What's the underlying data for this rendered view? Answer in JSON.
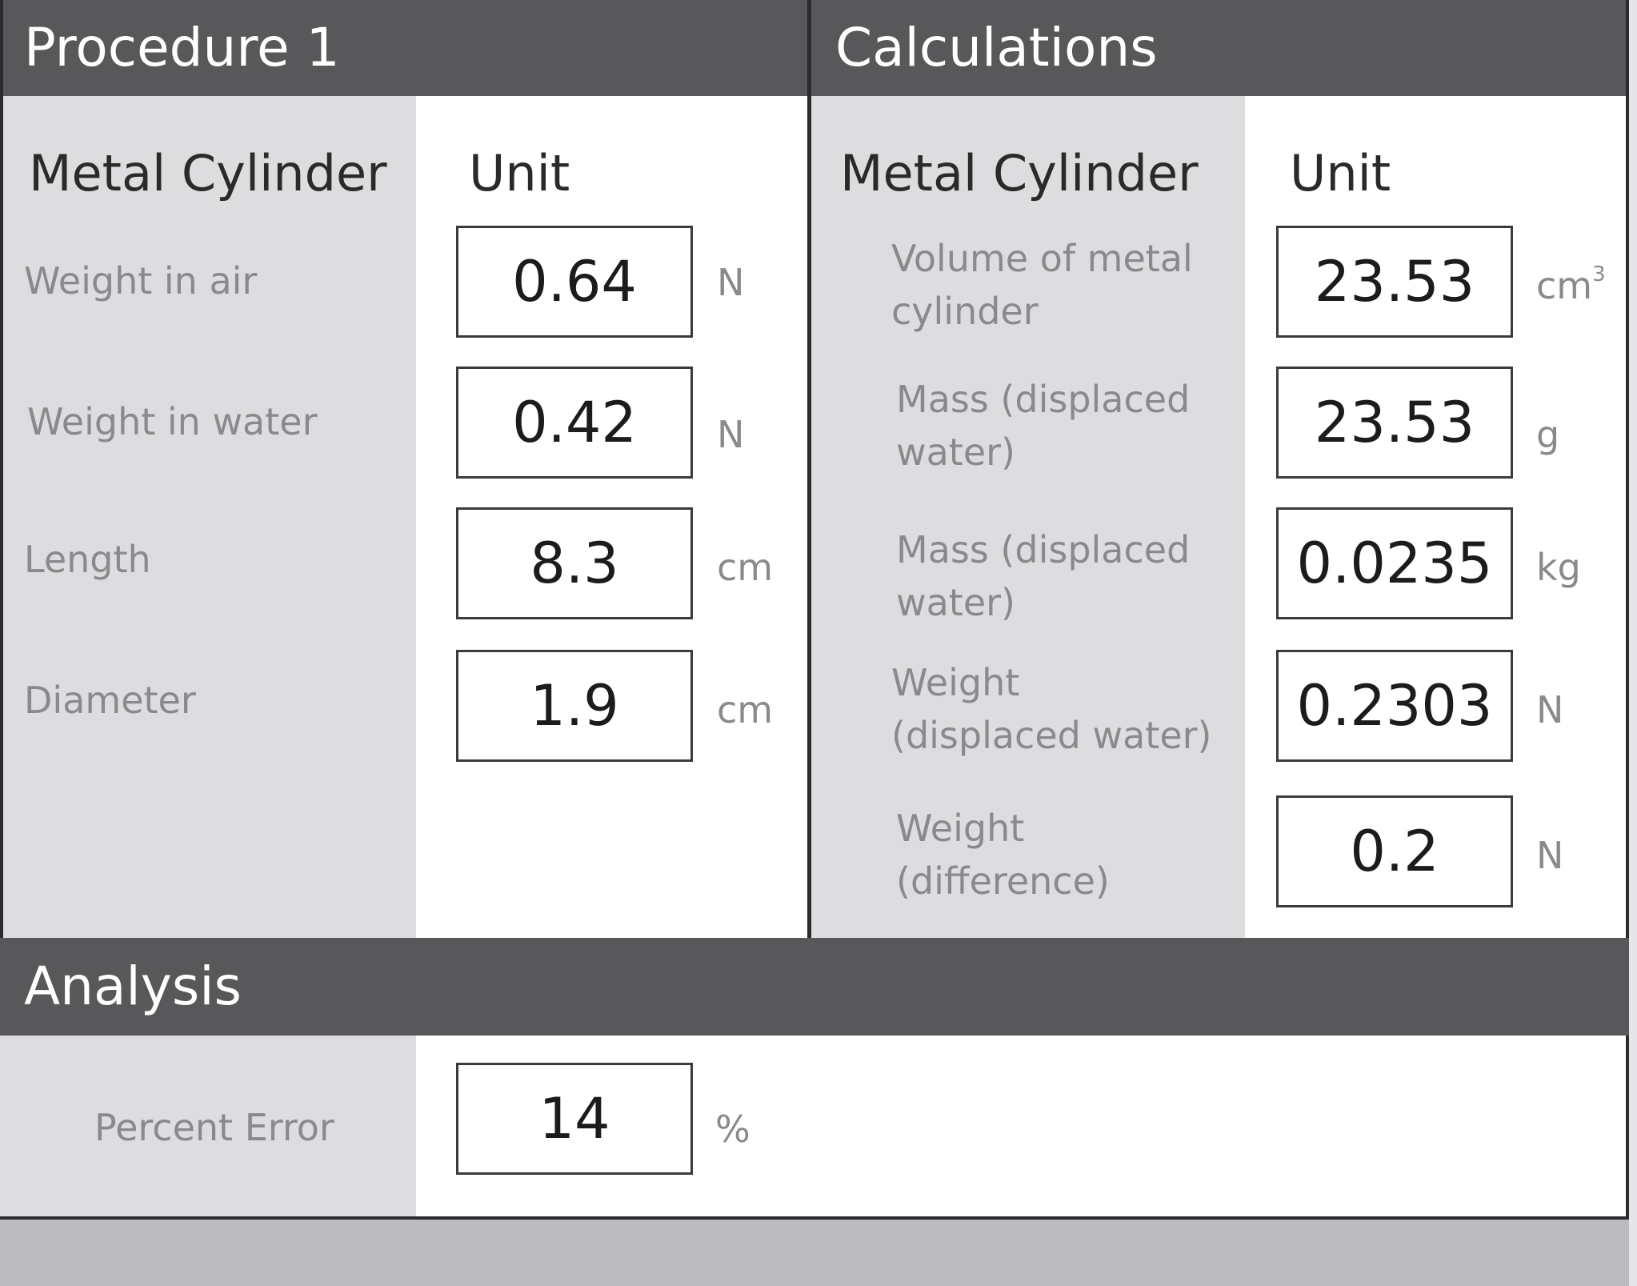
{
  "procedure": {
    "title": "Procedure 1",
    "column_header": "Metal Cylinder",
    "unit_header": "Unit",
    "rows": [
      {
        "label": "Weight in air",
        "value": "0.64",
        "unit": "N"
      },
      {
        "label": "Weight in water",
        "value": "0.42",
        "unit": "N"
      },
      {
        "label": "Length",
        "value": "8.3",
        "unit": "cm"
      },
      {
        "label": "Diameter",
        "value": "1.9",
        "unit": "cm"
      }
    ]
  },
  "calculations": {
    "title": "Calculations",
    "column_header": "Metal Cylinder",
    "unit_header": "Unit",
    "rows": [
      {
        "label_line1": "Volume of metal",
        "label_line2": "cylinder",
        "value": "23.53",
        "unit": "cm",
        "unit_sup": "3"
      },
      {
        "label_line1": "Mass (displaced",
        "label_line2": "water)",
        "value": "23.53",
        "unit": "g"
      },
      {
        "label_line1": "Mass (displaced",
        "label_line2": "water)",
        "value": "0.0235",
        "unit": "kg"
      },
      {
        "label_line1": "Weight",
        "label_line2": "(displaced water)",
        "value": "0.2303",
        "unit": "N"
      },
      {
        "label_line1": "Weight",
        "label_line2": "(difference)",
        "value": "0.2",
        "unit": "N"
      }
    ]
  },
  "analysis": {
    "title": "Analysis",
    "rows": [
      {
        "label": "Percent Error",
        "value": "14",
        "unit": "%"
      }
    ]
  }
}
